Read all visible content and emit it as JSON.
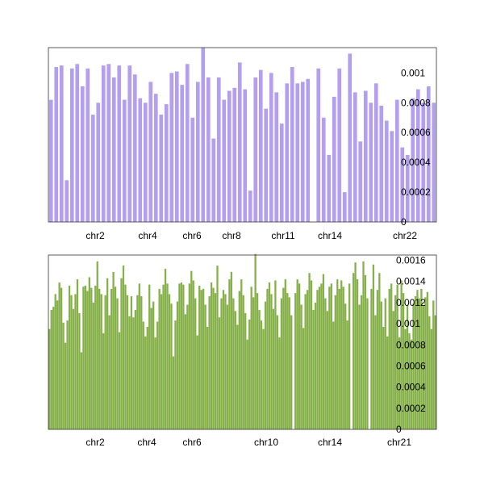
{
  "chart_data": [
    {
      "type": "bar",
      "color": "#b39ef0",
      "ylim": [
        0,
        0.00117
      ],
      "y_ticks": [
        "0",
        "0.0002",
        "0.0004",
        "0.0006",
        "0.0008",
        "0.001"
      ],
      "x_ticks": [
        "chr2",
        "chr4",
        "chr6",
        "chr8",
        "chr11",
        "chr14",
        "chr22"
      ],
      "values": [
        0.00082,
        0.00104,
        0.00105,
        0.00028,
        0.00103,
        0.00106,
        0.00091,
        0.00103,
        0.00072,
        0.0008,
        0.00105,
        0.00106,
        0.00097,
        0.00105,
        0.00082,
        0.00105,
        0.00099,
        0.00083,
        0.0008,
        0.00094,
        0.00086,
        0.00072,
        0.00079,
        0.001,
        0.00101,
        0.00092,
        0.00106,
        0.0007,
        0.00094,
        0.00117,
        0.00097,
        0.00056,
        0.00097,
        0.00082,
        0.00088,
        0.0009,
        0.00107,
        0.00089,
        0.00021,
        0.00097,
        0.00102,
        0.00076,
        0.001,
        0.00087,
        0.00066,
        0.00093,
        0.00104,
        0.00093,
        0.00094,
        0.00096,
        0.0,
        0.00103,
        0.0007,
        0.00045,
        0.00084,
        0.00103,
        0.0002,
        0.00113,
        0.00087,
        0.00054,
        0.00088,
        0.0008,
        0.00093,
        0.00078,
        0.00068,
        0.00061,
        0.00082,
        0.0005,
        0.00045,
        0.00083,
        0.00089,
        0.0008,
        0.00091,
        0.0008
      ]
    },
    {
      "type": "bar",
      "color": "#86b04a",
      "ylim": [
        0,
        0.00165
      ],
      "y_ticks": [
        "0",
        "0.0002",
        "0.0004",
        "0.0006",
        "0.0008",
        "0.001",
        "0.0012",
        "0.0014",
        "0.0016"
      ],
      "x_ticks": [
        "chr2",
        "chr4",
        "chr6",
        "chr10",
        "chr14",
        "chr21"
      ],
      "values": [
        0.00095,
        0.00113,
        0.00116,
        0.00128,
        0.00122,
        0.00139,
        0.00134,
        0.00101,
        0.00082,
        0.00103,
        0.00136,
        0.00127,
        0.00114,
        0.00128,
        0.00142,
        0.0011,
        0.00073,
        0.00135,
        0.00136,
        0.00131,
        0.00144,
        0.00134,
        0.0012,
        0.00136,
        0.00159,
        0.00133,
        0.00128,
        0.00091,
        0.00127,
        0.00143,
        0.00108,
        0.00133,
        0.00149,
        0.00135,
        0.00124,
        0.00092,
        0.00143,
        0.00155,
        0.00137,
        0.00127,
        0.00107,
        0.00126,
        0.00106,
        0.00113,
        0.00127,
        0.00138,
        0.00126,
        0.00102,
        0.00088,
        0.00097,
        0.00137,
        0.00115,
        0.00121,
        0.00087,
        0.00102,
        0.00133,
        0.00128,
        0.00137,
        0.00152,
        0.00138,
        0.00128,
        0.00119,
        0.00069,
        0.00103,
        0.00121,
        0.00138,
        0.00139,
        0.00137,
        0.00109,
        0.00118,
        0.00138,
        0.0015,
        0.00141,
        0.00124,
        0.00089,
        0.00136,
        0.00132,
        0.00133,
        0.00118,
        0.00097,
        0.00126,
        0.00139,
        0.00134,
        0.00129,
        0.00155,
        0.00106,
        0.00124,
        0.00132,
        0.00128,
        0.00118,
        0.00142,
        0.00149,
        0.00124,
        0.00112,
        0.00099,
        0.00131,
        0.00142,
        0.00127,
        0.0011,
        0.00085,
        0.00104,
        0.00135,
        0.00125,
        0.00166,
        0.00129,
        0.00113,
        0.00103,
        0.00095,
        0.00121,
        0.00133,
        0.00139,
        0.00128,
        0.00114,
        0.00141,
        0.00108,
        0.00087,
        0.00124,
        0.00134,
        0.00142,
        0.00129,
        0.00125,
        0.00108,
        0.0,
        0.00129,
        0.00142,
        0.00138,
        0.00118,
        0.00096,
        0.00128,
        0.00132,
        0.00148,
        0.00141,
        0.00113,
        0.0012,
        0.00132,
        0.00135,
        0.00138,
        0.00147,
        0.00124,
        0.00112,
        0.00135,
        0.00138,
        0.00102,
        0.00127,
        0.00142,
        0.00133,
        0.00141,
        0.00135,
        0.00119,
        0.00103,
        0.00138,
        0.0,
        0.00148,
        0.00158,
        0.00142,
        0.00118,
        0.00127,
        0.00159,
        0.00146,
        0.00124,
        0.0,
        0.00133,
        0.00156,
        0.00108,
        0.00132,
        0.00148,
        0.00121,
        0.00097,
        0.00124,
        0.00088,
        0.00133,
        0.00138,
        0.00112,
        0.00127,
        0.00137,
        0.00087,
        0.00141,
        0.00129,
        0.00095,
        0.00118,
        0.00091,
        0.00085,
        0.00119,
        0.00126,
        0.00132,
        0.00124,
        0.00133,
        0.00117,
        0.00125,
        0.0013,
        0.00107,
        0.00095,
        0.00122,
        0.00108
      ]
    }
  ]
}
